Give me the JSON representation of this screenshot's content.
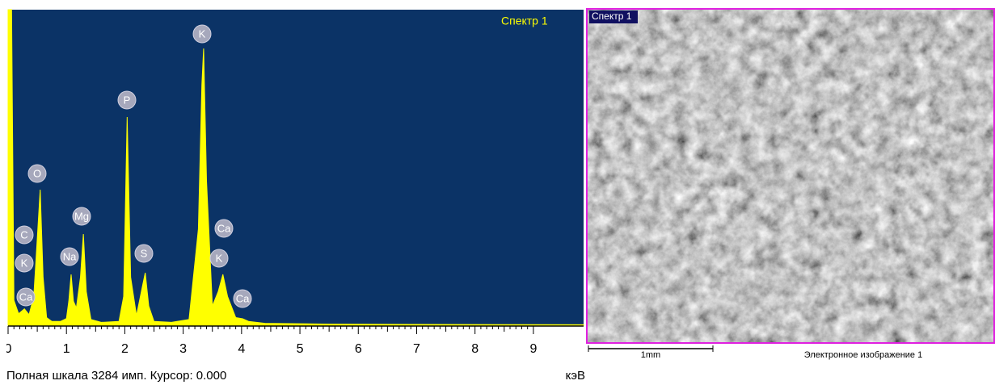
{
  "chart_data": {
    "type": "area",
    "x": [
      0,
      0.06,
      0.1,
      0.18,
      0.28,
      0.36,
      0.44,
      0.5,
      0.55,
      0.6,
      0.66,
      0.75,
      0.9,
      1.0,
      1.04,
      1.08,
      1.12,
      1.17,
      1.24,
      1.29,
      1.34,
      1.42,
      1.6,
      1.9,
      1.98,
      2.04,
      2.1,
      2.2,
      2.3,
      2.35,
      2.41,
      2.5,
      2.8,
      3.1,
      3.26,
      3.32,
      3.35,
      3.4,
      3.5,
      3.6,
      3.68,
      3.76,
      3.9,
      4.02,
      4.12,
      4.4,
      5.5,
      7,
      8.5,
      9.86
    ],
    "series": [
      {
        "name": "Спектр 1",
        "color": "#ffff00",
        "values": [
          3284,
          3284,
          260,
          120,
          170,
          110,
          300,
          900,
          1411,
          500,
          80,
          40,
          40,
          70,
          250,
          529,
          250,
          180,
          500,
          949,
          350,
          60,
          30,
          40,
          300,
          2167,
          500,
          100,
          400,
          546,
          200,
          40,
          30,
          60,
          1000,
          2500,
          2880,
          1500,
          200,
          350,
          529,
          300,
          80,
          67,
          40,
          20,
          12,
          8,
          6,
          5
        ]
      }
    ],
    "xlim": [
      0,
      9.86
    ],
    "ylim": [
      0,
      3284
    ],
    "xticks": [
      0,
      1,
      2,
      3,
      4,
      5,
      6,
      7,
      8,
      9
    ],
    "xlabel": "кэВ",
    "status": "Полная шкала 3284 имп. Курсор: 0.000",
    "peak_labels": [
      "C",
      "K",
      "Ca",
      "O",
      "Na",
      "Mg",
      "P",
      "S",
      "K",
      "Ca",
      "K",
      "Ca"
    ],
    "background": "#0b3366"
  },
  "image": {
    "label": "Спектр 1",
    "scale_bar": "1mm",
    "caption": "Электронное изображение 1"
  }
}
